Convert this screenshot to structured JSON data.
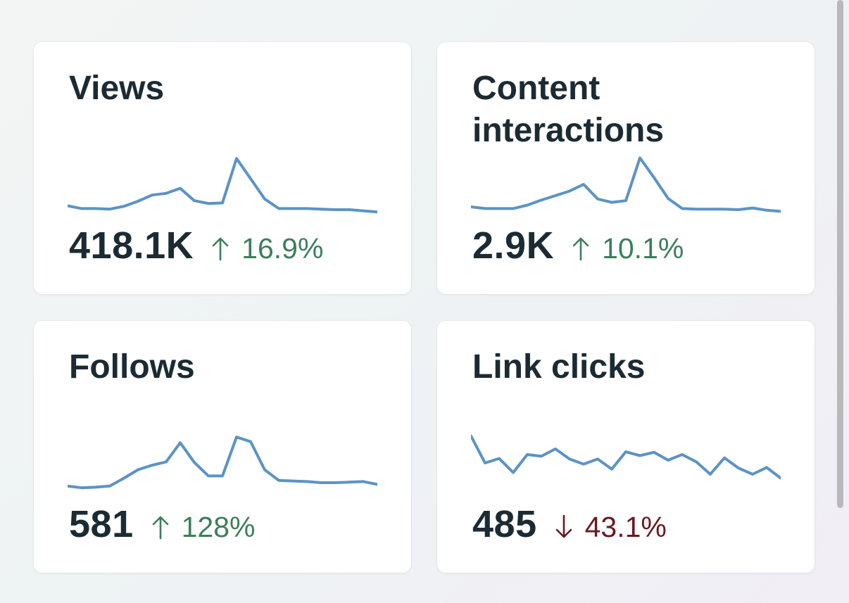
{
  "colors": {
    "accent_line": "#5b93c6",
    "positive": "#3c7e5d",
    "negative": "#6b1a22",
    "text": "#1c2b33"
  },
  "cards": [
    {
      "title": "Views",
      "value": "418.1K",
      "change": "16.9%",
      "direction": "up",
      "arrow_icon": "arrow-up-icon",
      "trend": [
        88,
        93,
        93,
        94,
        89,
        80,
        69,
        66,
        57,
        79,
        84,
        83,
        4,
        40,
        76,
        93,
        93,
        93,
        94,
        95,
        95,
        97,
        99
      ]
    },
    {
      "title": "Content interactions",
      "value": "2.9K",
      "change": "10.1%",
      "direction": "up",
      "arrow_icon": "arrow-up-icon",
      "trend": [
        90,
        93,
        93,
        93,
        87,
        78,
        70,
        62,
        50,
        76,
        82,
        79,
        3,
        38,
        75,
        93,
        94,
        94,
        94,
        95,
        92,
        96,
        98
      ]
    },
    {
      "title": "Follows",
      "value": "581",
      "change": "128%",
      "direction": "up",
      "arrow_icon": "arrow-up-icon",
      "trend": [
        91,
        94,
        93,
        91,
        77,
        62,
        54,
        48,
        14,
        49,
        73,
        73,
        4,
        12,
        62,
        81,
        82,
        83,
        85,
        85,
        84,
        83,
        88
      ]
    },
    {
      "title": "Link clicks",
      "value": "485",
      "change": "43.1%",
      "direction": "down",
      "arrow_icon": "arrow-down-icon",
      "trend": [
        2,
        50,
        42,
        67,
        35,
        38,
        25,
        43,
        52,
        43,
        61,
        30,
        37,
        31,
        45,
        35,
        48,
        70,
        41,
        59,
        70,
        58,
        77
      ]
    }
  ]
}
